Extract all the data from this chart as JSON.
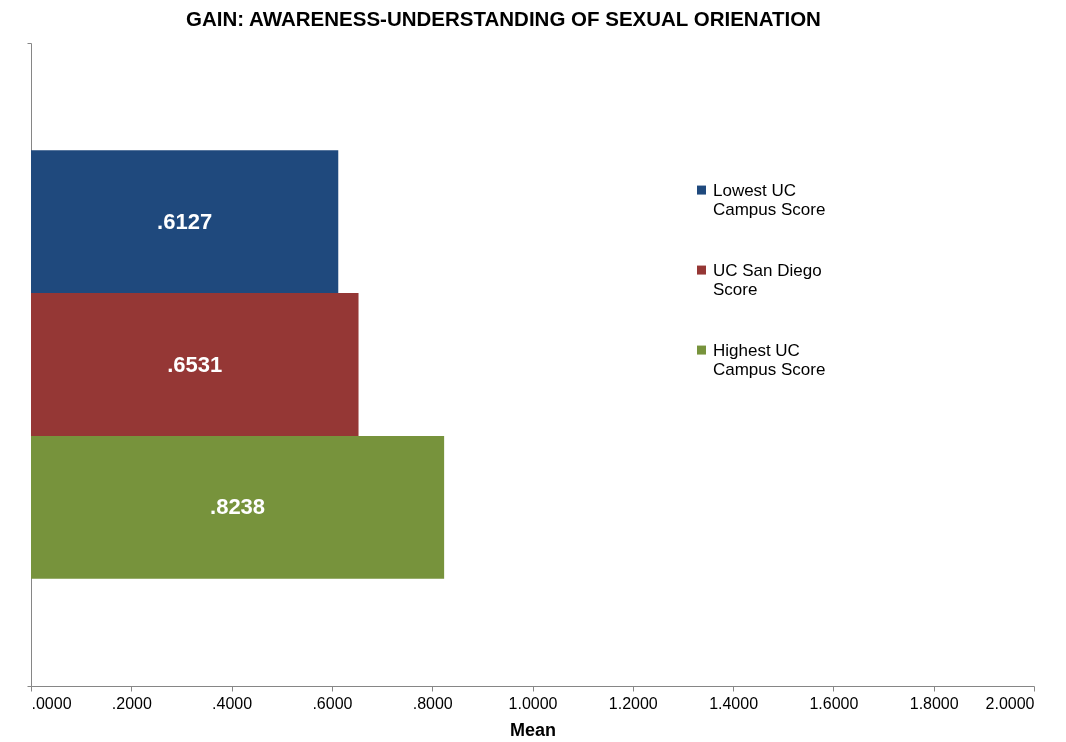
{
  "chart_data": {
    "type": "bar",
    "title": "GAIN: AWARENESS-UNDERSTANDING OF SEXUAL ORIENATION",
    "xlabel": "Mean",
    "orientation": "horizontal",
    "categories": [
      null
    ],
    "series": [
      {
        "name": "Lowest UC Campus Score",
        "color": "#1f497d",
        "values": [
          0.6127
        ],
        "value_labels": [
          ".6127"
        ]
      },
      {
        "name": "UC San Diego Score",
        "color": "#953735",
        "values": [
          0.6531
        ],
        "value_labels": [
          ".6531"
        ]
      },
      {
        "name": "Highest UC Campus Score",
        "color": "#77933c",
        "values": [
          0.8238
        ],
        "value_labels": [
          ".8238"
        ]
      }
    ],
    "xlim": [
      0,
      2
    ],
    "xticks": [
      {
        "value": 0,
        "label": ".0000"
      },
      {
        "value": 0.2,
        "label": ".2000"
      },
      {
        "value": 0.4,
        "label": ".4000"
      },
      {
        "value": 0.6,
        "label": ".6000"
      },
      {
        "value": 0.8,
        "label": ".8000"
      },
      {
        "value": 1,
        "label": "1.0000"
      },
      {
        "value": 1.2,
        "label": "1.2000"
      },
      {
        "value": 1.4,
        "label": "1.4000"
      },
      {
        "value": 1.6,
        "label": "1.6000"
      },
      {
        "value": 1.8,
        "label": "1.8000"
      },
      {
        "value": 2,
        "label": "2.0000"
      }
    ],
    "legend": "right"
  }
}
